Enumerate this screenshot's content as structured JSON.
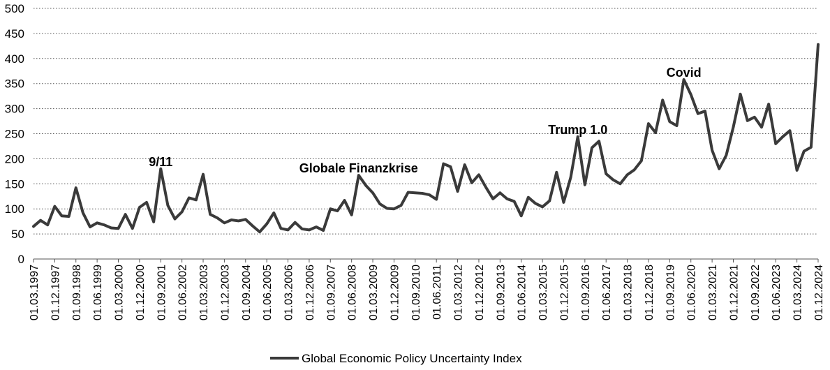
{
  "chart_data": {
    "type": "line",
    "title": "",
    "xlabel": "",
    "ylabel": "",
    "ylim": [
      0,
      500
    ],
    "yticks": [
      0,
      50,
      100,
      150,
      200,
      250,
      300,
      350,
      400,
      450,
      500
    ],
    "grid": "horizontal-dotted",
    "legend_position": "bottom-center",
    "line_color": "#3a3a3a",
    "x_tick_labels": [
      "01.03.1997",
      "01.12.1997",
      "01.09.1998",
      "01.06.1999",
      "01.03.2000",
      "01.12.2000",
      "01.09.2001",
      "01.06.2002",
      "01.03.2003",
      "01.12.2003",
      "01.09.2004",
      "01.06.2005",
      "01.03.2006",
      "01.12.2006",
      "01.09.2007",
      "01.06.2008",
      "01.03.2009",
      "01.12.2009",
      "01.09.2010",
      "01.06.2011",
      "01.03.2012",
      "01.12.2012",
      "01.09.2013",
      "01.06.2014",
      "01.03.2015",
      "01.12.2015",
      "01.09.2016",
      "01.06.2017",
      "01.03.2018",
      "01.12.2018",
      "01.09.2019",
      "01.06.2020",
      "01.03.2021",
      "01.12.2021",
      "01.09.2022",
      "01.06.2023",
      "01.03.2024",
      "01.12.2024"
    ],
    "series": [
      {
        "name": "Global Economic Policy Uncertainty Index",
        "values": [
          65,
          77,
          68,
          105,
          86,
          85,
          142,
          92,
          64,
          72,
          68,
          62,
          61,
          89,
          61,
          103,
          113,
          74,
          180,
          107,
          80,
          94,
          122,
          118,
          169,
          89,
          82,
          72,
          78,
          76,
          79,
          66,
          54,
          70,
          92,
          61,
          58,
          73,
          60,
          58,
          64,
          57,
          100,
          96,
          117,
          88,
          167,
          147,
          132,
          110,
          101,
          100,
          107,
          133,
          132,
          131,
          128,
          119,
          190,
          184,
          135,
          188,
          152,
          168,
          143,
          120,
          132,
          120,
          115,
          86,
          123,
          111,
          104,
          116,
          173,
          113,
          163,
          244,
          148,
          222,
          235,
          170,
          158,
          150,
          168,
          178,
          196,
          270,
          252,
          317,
          274,
          266,
          358,
          328,
          290,
          295,
          217,
          180,
          207,
          263,
          329,
          276,
          283,
          263,
          309,
          230,
          244,
          256,
          177,
          215,
          223,
          428
        ]
      }
    ],
    "annotations": [
      {
        "text": "9/11",
        "x_index": 18,
        "y": 180
      },
      {
        "text": "Globale Finanzkrise",
        "x_index": 46,
        "y": 167
      },
      {
        "text": "Trump 1.0",
        "x_index": 77,
        "y": 244
      },
      {
        "text": "Covid",
        "x_index": 92,
        "y": 358
      }
    ]
  }
}
